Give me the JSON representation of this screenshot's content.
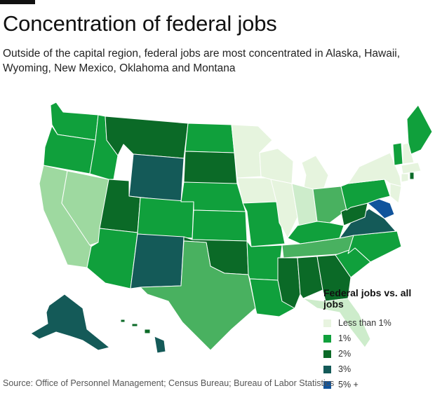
{
  "header": {
    "title": "Concentration of federal jobs",
    "subtitle": "Outside of the capital region, federal jobs are most concentrated in Alaska, Hawaii, Wyoming, New Mexico, Oklahoma and Montana"
  },
  "legend": {
    "title": "Federal jobs vs. all jobs",
    "items": [
      {
        "label": "Less than 1%",
        "color": "#e8f4e0"
      },
      {
        "label": "1%",
        "color": "#10a03c"
      },
      {
        "label": "2%",
        "color": "#0b6a27"
      },
      {
        "label": "3%",
        "color": "#145a58"
      },
      {
        "label": "5% +",
        "color": "#10549c"
      }
    ]
  },
  "map_colors": {
    "very_light": "#e6f4de",
    "light": "#cdeccb",
    "mid_light": "#9ed9a0",
    "mid": "#49b160",
    "one_pct": "#10a03c",
    "two_pct": "#0b6a27",
    "three_pct": "#145a58",
    "five_plus": "#10549c"
  },
  "footer": {
    "source": "Source: Office of Personnel Management; Census Bureau; Bureau of Labor Statistics"
  }
}
